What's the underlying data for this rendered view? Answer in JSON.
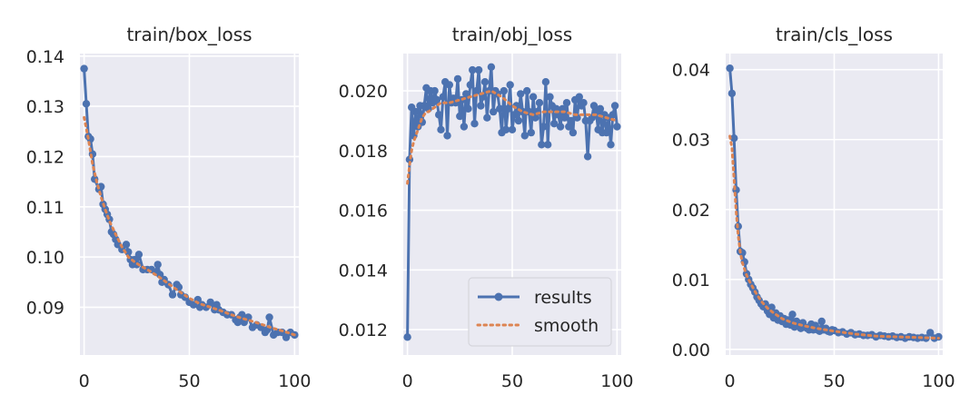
{
  "colors": {
    "results": "#4c72b0",
    "smooth": "#dd8452",
    "panel_bg": "#eaeaf2",
    "grid": "#ffffff",
    "text": "#262626"
  },
  "legend": {
    "items": [
      {
        "label": "results",
        "style": "line-marker"
      },
      {
        "label": "smooth",
        "style": "dotted"
      }
    ],
    "placement": "lower-right",
    "panel": 1
  },
  "chart_data": [
    {
      "type": "line",
      "title": "train/box_loss",
      "xlabel": "",
      "ylabel": "",
      "xlim": [
        -2,
        102
      ],
      "ylim": [
        0.0805,
        0.1405
      ],
      "xticks": [
        0,
        50,
        100
      ],
      "yticks": [
        0.09,
        0.1,
        0.11,
        0.12,
        0.13,
        0.14
      ],
      "ytick_labels": [
        "0.09",
        "0.10",
        "0.11",
        "0.12",
        "0.13",
        "0.14"
      ],
      "grid": true,
      "series": [
        {
          "name": "results",
          "style": "line-marker",
          "x": [
            0,
            1,
            2,
            3,
            4,
            5,
            7,
            8,
            9,
            10,
            11,
            12,
            13,
            14,
            15,
            16,
            18,
            20,
            21,
            22,
            23,
            24,
            25,
            26,
            28,
            30,
            32,
            34,
            35,
            36,
            37,
            38,
            40,
            42,
            44,
            45,
            46,
            48,
            50,
            52,
            54,
            55,
            56,
            58,
            60,
            62,
            63,
            64,
            66,
            68,
            70,
            72,
            73,
            74,
            75,
            76,
            78,
            80,
            82,
            84,
            86,
            87,
            88,
            90,
            92,
            94,
            96,
            98,
            100
          ],
          "y": [
            0.1375,
            0.1305,
            0.124,
            0.1235,
            0.1205,
            0.1155,
            0.1135,
            0.114,
            0.1105,
            0.1095,
            0.1085,
            0.1075,
            0.105,
            0.1045,
            0.1035,
            0.1025,
            0.1015,
            0.1025,
            0.101,
            0.0995,
            0.0985,
            0.0995,
            0.0985,
            0.1005,
            0.0975,
            0.0975,
            0.0975,
            0.097,
            0.0985,
            0.0965,
            0.095,
            0.0955,
            0.0945,
            0.0925,
            0.0945,
            0.094,
            0.0925,
            0.092,
            0.091,
            0.0905,
            0.0915,
            0.09,
            0.0905,
            0.09,
            0.091,
            0.0895,
            0.0905,
            0.0895,
            0.089,
            0.0885,
            0.0885,
            0.0875,
            0.087,
            0.088,
            0.0885,
            0.087,
            0.088,
            0.086,
            0.0865,
            0.086,
            0.085,
            0.0855,
            0.088,
            0.0845,
            0.085,
            0.085,
            0.084,
            0.085,
            0.0845
          ]
        },
        {
          "name": "smooth",
          "style": "dotted",
          "x": [
            0,
            2,
            4,
            6,
            8,
            10,
            12,
            15,
            18,
            21,
            24,
            27,
            30,
            35,
            40,
            45,
            50,
            55,
            60,
            65,
            70,
            75,
            80,
            85,
            90,
            95,
            100
          ],
          "y": [
            0.1278,
            0.1235,
            0.1185,
            0.115,
            0.112,
            0.1095,
            0.1072,
            0.1045,
            0.102,
            0.1,
            0.099,
            0.0982,
            0.0975,
            0.0962,
            0.0947,
            0.0932,
            0.0918,
            0.0907,
            0.09,
            0.0893,
            0.0885,
            0.0878,
            0.0872,
            0.0865,
            0.0858,
            0.0852,
            0.0845
          ]
        }
      ]
    },
    {
      "type": "line",
      "title": "train/obj_loss",
      "xlabel": "",
      "ylabel": "",
      "xlim": [
        -2,
        102
      ],
      "ylim": [
        0.01115,
        0.02125
      ],
      "xticks": [
        0,
        50,
        100
      ],
      "yticks": [
        0.012,
        0.014,
        0.016,
        0.018,
        0.02
      ],
      "ytick_labels": [
        "0.012",
        "0.014",
        "0.016",
        "0.018",
        "0.020"
      ],
      "grid": true,
      "series": [
        {
          "name": "results",
          "style": "line-marker",
          "x": [
            0,
            1,
            2,
            3,
            4,
            5,
            6,
            7,
            8,
            9,
            10,
            11,
            12,
            13,
            14,
            15,
            16,
            17,
            18,
            19,
            20,
            21,
            22,
            23,
            24,
            25,
            26,
            27,
            28,
            29,
            30,
            31,
            32,
            33,
            34,
            35,
            36,
            37,
            38,
            39,
            40,
            41,
            42,
            43,
            44,
            45,
            46,
            47,
            48,
            49,
            50,
            51,
            52,
            53,
            54,
            55,
            56,
            57,
            58,
            59,
            60,
            61,
            62,
            63,
            64,
            65,
            66,
            67,
            68,
            69,
            70,
            71,
            72,
            73,
            74,
            75,
            76,
            77,
            78,
            79,
            80,
            81,
            82,
            83,
            84,
            85,
            86,
            87,
            88,
            89,
            90,
            91,
            92,
            93,
            94,
            95,
            96,
            97,
            98,
            99,
            100
          ],
          "y": [
            0.01175,
            0.0177,
            0.01945,
            0.0185,
            0.0193,
            0.0188,
            0.0195,
            0.01895,
            0.0195,
            0.0201,
            0.0194,
            0.02,
            0.0196,
            0.02,
            0.0197,
            0.0192,
            0.0187,
            0.0198,
            0.0203,
            0.0185,
            0.0202,
            0.0196,
            0.01975,
            0.0196,
            0.0204,
            0.01915,
            0.0197,
            0.0188,
            0.0199,
            0.0194,
            0.0202,
            0.0207,
            0.0189,
            0.02,
            0.0207,
            0.0195,
            0.0198,
            0.0203,
            0.0191,
            0.02,
            0.0208,
            0.0193,
            0.02,
            0.0199,
            0.0194,
            0.0186,
            0.02,
            0.0187,
            0.0194,
            0.0202,
            0.0187,
            0.0192,
            0.0195,
            0.019,
            0.0199,
            0.0193,
            0.0185,
            0.02,
            0.0193,
            0.0186,
            0.0198,
            0.0191,
            0.0193,
            0.0196,
            0.0182,
            0.0188,
            0.0203,
            0.0182,
            0.0198,
            0.0195,
            0.0189,
            0.0194,
            0.0192,
            0.0188,
            0.0194,
            0.0191,
            0.0196,
            0.0188,
            0.019,
            0.0186,
            0.0197,
            0.0191,
            0.0198,
            0.0195,
            0.0196,
            0.019,
            0.0178,
            0.019,
            0.0191,
            0.0195,
            0.0193,
            0.0187,
            0.0194,
            0.0186,
            0.0192,
            0.0186,
            0.0191,
            0.0182,
            0.0192,
            0.0195,
            0.0188
          ]
        },
        {
          "name": "smooth",
          "style": "dotted",
          "x": [
            0,
            1,
            2,
            3,
            4,
            5,
            6,
            7,
            8,
            9,
            10,
            12,
            14,
            16,
            20,
            25,
            30,
            35,
            40,
            45,
            50,
            55,
            60,
            65,
            70,
            75,
            80,
            85,
            90,
            95,
            100
          ],
          "y": [
            0.0169,
            0.0175,
            0.018,
            0.0183,
            0.0185,
            0.0187,
            0.0189,
            0.0191,
            0.0192,
            0.0193,
            0.0193,
            0.0194,
            0.0195,
            0.0196,
            0.0196,
            0.0197,
            0.0198,
            0.0199,
            0.02,
            0.0198,
            0.0195,
            0.0193,
            0.0192,
            0.0193,
            0.0193,
            0.0193,
            0.0192,
            0.0192,
            0.0192,
            0.0191,
            0.019
          ]
        }
      ]
    },
    {
      "type": "line",
      "title": "train/cls_loss",
      "xlabel": "",
      "ylabel": "",
      "xlim": [
        -2,
        102
      ],
      "ylim": [
        -0.0008,
        0.0423
      ],
      "xticks": [
        0,
        50,
        100
      ],
      "yticks": [
        0.0,
        0.01,
        0.02,
        0.03,
        0.04
      ],
      "ytick_labels": [
        "0.00",
        "0.01",
        "0.02",
        "0.03",
        "0.04"
      ],
      "grid": true,
      "series": [
        {
          "name": "results",
          "style": "line-marker",
          "x": [
            0,
            1,
            2,
            3,
            4,
            5,
            6,
            7,
            8,
            9,
            10,
            11,
            12,
            13,
            14,
            15,
            16,
            17,
            18,
            19,
            20,
            21,
            22,
            23,
            24,
            25,
            26,
            27,
            28,
            29,
            30,
            31,
            32,
            33,
            34,
            35,
            36,
            37,
            38,
            39,
            40,
            41,
            42,
            43,
            44,
            45,
            46,
            47,
            48,
            49,
            50,
            52,
            54,
            56,
            58,
            60,
            62,
            64,
            66,
            68,
            70,
            72,
            74,
            76,
            78,
            80,
            82,
            84,
            86,
            88,
            90,
            92,
            94,
            96,
            98,
            100
          ],
          "y": [
            0.0402,
            0.0366,
            0.0302,
            0.0228,
            0.0176,
            0.014,
            0.0138,
            0.0125,
            0.0108,
            0.01,
            0.0093,
            0.0088,
            0.0082,
            0.0075,
            0.007,
            0.0065,
            0.0061,
            0.0065,
            0.0055,
            0.005,
            0.006,
            0.0045,
            0.0052,
            0.0042,
            0.0048,
            0.004,
            0.0044,
            0.0036,
            0.0042,
            0.0035,
            0.005,
            0.0032,
            0.004,
            0.0034,
            0.003,
            0.0038,
            0.0032,
            0.003,
            0.0028,
            0.0036,
            0.0028,
            0.0034,
            0.0028,
            0.0026,
            0.004,
            0.0028,
            0.003,
            0.0026,
            0.0025,
            0.0028,
            0.0027,
            0.0024,
            0.0025,
            0.0022,
            0.0024,
            0.0021,
            0.0022,
            0.002,
            0.002,
            0.0021,
            0.0018,
            0.002,
            0.0019,
            0.0018,
            0.0019,
            0.0017,
            0.0018,
            0.0016,
            0.0018,
            0.0017,
            0.0016,
            0.0017,
            0.0016,
            0.0024,
            0.0016,
            0.0018
          ]
        },
        {
          "name": "smooth",
          "style": "dotted",
          "x": [
            0,
            1,
            2,
            3,
            4,
            5,
            6,
            8,
            10,
            12,
            15,
            18,
            21,
            25,
            30,
            35,
            40,
            50,
            60,
            70,
            80,
            90,
            100
          ],
          "y": [
            0.0305,
            0.0288,
            0.0245,
            0.0198,
            0.0163,
            0.0139,
            0.0124,
            0.0106,
            0.0094,
            0.0083,
            0.0069,
            0.0059,
            0.0052,
            0.0044,
            0.0038,
            0.0034,
            0.0031,
            0.0026,
            0.0022,
            0.0019,
            0.0018,
            0.0017,
            0.0016
          ]
        }
      ]
    }
  ]
}
